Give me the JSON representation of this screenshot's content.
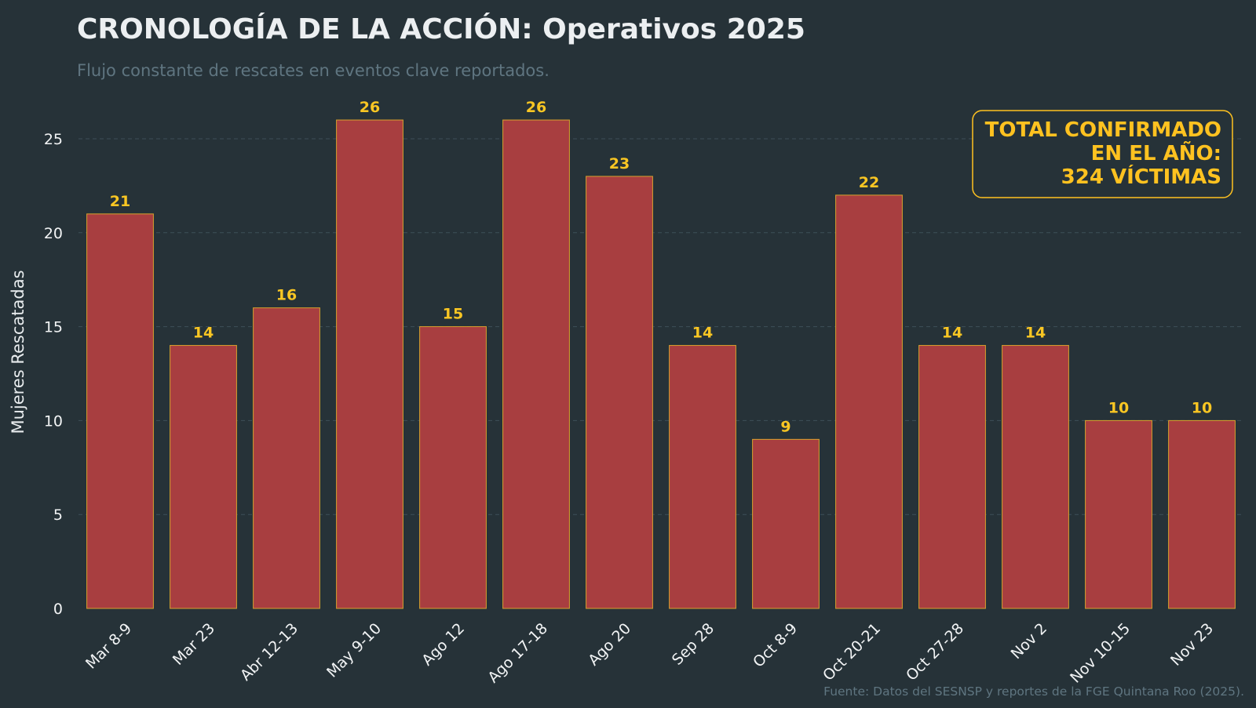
{
  "title": "CRONOLOGÍA DE LA ACCIÓN: Operativos 2025",
  "subtitle": "Flujo constante de rescates en eventos clave reportados.",
  "source": "Fuente: Datos del SESNSP y reportes de la FGE Quintana Roo (2025).",
  "total_box": {
    "lines": [
      "TOTAL CONFIRMADO",
      "EN EL AÑO:",
      "324 VÍCTIMAS"
    ]
  },
  "colors": {
    "background": "#263238",
    "bar": "#a83e40",
    "bar_edge": "#d8a22d",
    "accent": "#f9c623",
    "muted": "#5f7580"
  },
  "chart_data": {
    "type": "bar",
    "title": "CRONOLOGÍA DE LA ACCIÓN: Operativos 2025",
    "subtitle": "Flujo constante de rescates en eventos clave reportados.",
    "xlabel": "",
    "ylabel": "Mujeres Rescatadas",
    "categories": [
      "Mar 8-9",
      "Mar 23",
      "Abr 12-13",
      "May 9-10",
      "Ago 12",
      "Ago 17-18",
      "Ago 20",
      "Sep 28",
      "Oct 8-9",
      "Oct 20-21",
      "Oct 27-28",
      "Nov 2",
      "Nov 10-15",
      "Nov 23"
    ],
    "values": [
      21,
      14,
      16,
      26,
      15,
      26,
      23,
      14,
      9,
      22,
      14,
      14,
      10,
      10
    ],
    "ylim": [
      0,
      27.3
    ],
    "yticks": [
      0,
      5,
      10,
      15,
      20,
      25
    ],
    "grid": true,
    "data_labels": true
  }
}
